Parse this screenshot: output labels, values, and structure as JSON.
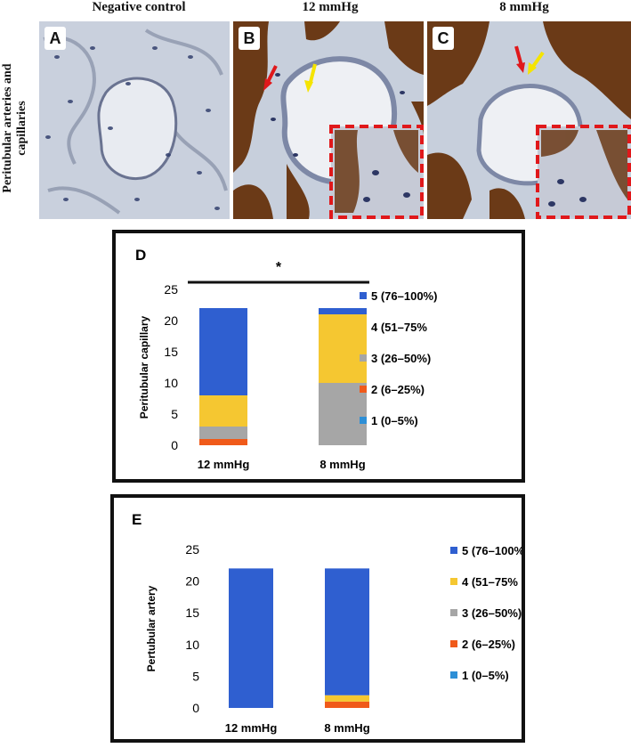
{
  "micrographs": {
    "row_label": "Peritubular arteries and capillaries",
    "columns": [
      {
        "title": "Negative control",
        "letter": "A"
      },
      {
        "title": "12 mmHg",
        "letter": "B"
      },
      {
        "title": "8 mmHg",
        "letter": "C"
      }
    ],
    "colors": {
      "background_pale": "#e4e8ef",
      "nuclei": "#3a4a7a",
      "stain_brown": "#6b3a17",
      "inset_border": "#e0181b",
      "arrow_red": "#e0181b",
      "arrow_yellow": "#f5e400"
    }
  },
  "chart_data": [
    {
      "type": "bar",
      "stacked": true,
      "panel_letter": "D",
      "ylabel": "Peritubular capillary",
      "ylim": [
        0,
        25
      ],
      "yticks": [
        0,
        5,
        10,
        15,
        20,
        25
      ],
      "categories": [
        "12 mmHg",
        "8 mmHg"
      ],
      "series": [
        {
          "name": "1 (0–5%)",
          "color": "#2e8fd6",
          "values": [
            0,
            0
          ]
        },
        {
          "name": "2 (6–25%)",
          "color": "#f05a1a",
          "values": [
            1,
            0
          ]
        },
        {
          "name": "3 (26–50%)",
          "color": "#a6a6a6",
          "values": [
            2,
            10
          ]
        },
        {
          "name": "4 (51–75%",
          "color": "#f5c731",
          "values": [
            5,
            11
          ]
        },
        {
          "name": "5 (76–100%)",
          "color": "#2f5fd0",
          "values": [
            14,
            1
          ]
        }
      ],
      "significance": "*",
      "legend": "right"
    },
    {
      "type": "bar",
      "stacked": true,
      "panel_letter": "E",
      "ylabel": "Pertubular artery",
      "ylim": [
        0,
        25
      ],
      "yticks": [
        0,
        5,
        10,
        15,
        20,
        25
      ],
      "categories": [
        "12 mmHg",
        "8 mmHg"
      ],
      "series": [
        {
          "name": "1 (0–5%)",
          "color": "#2e8fd6",
          "values": [
            0,
            0
          ]
        },
        {
          "name": "2 (6–25%)",
          "color": "#f05a1a",
          "values": [
            0,
            1
          ]
        },
        {
          "name": "3 (26–50%)",
          "color": "#a6a6a6",
          "values": [
            0,
            0
          ]
        },
        {
          "name": "4 (51–75%",
          "color": "#f5c731",
          "values": [
            0,
            1
          ]
        },
        {
          "name": "5 (76–100%)",
          "color": "#2f5fd0",
          "values": [
            22,
            20
          ]
        }
      ],
      "legend": "right"
    }
  ]
}
